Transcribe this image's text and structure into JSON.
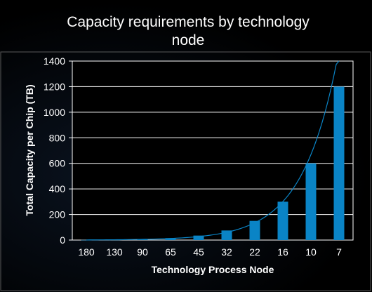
{
  "chart_data": {
    "type": "bar",
    "title_lines": [
      "Capacity requirements by technology",
      "node"
    ],
    "xlabel": "Technology Process Node",
    "ylabel": "Total Capacity per Chip (TB)",
    "categories": [
      "180",
      "130",
      "90",
      "65",
      "45",
      "32",
      "22",
      "16",
      "10",
      "7"
    ],
    "values": [
      1,
      2,
      5,
      15,
      35,
      75,
      150,
      300,
      600,
      1200
    ],
    "ylim": [
      0,
      1400
    ],
    "yticks": [
      "0",
      "200",
      "400",
      "600",
      "800",
      "1000",
      "1200",
      "1400"
    ],
    "grid": true,
    "trendline": "exponential",
    "colors": {
      "bar": "#0a84c6",
      "trendline": "#0a84c6",
      "plot_background": "#000000",
      "gridline": "#ffffff",
      "axis": "#ffffff",
      "text": "#ffffff"
    }
  }
}
